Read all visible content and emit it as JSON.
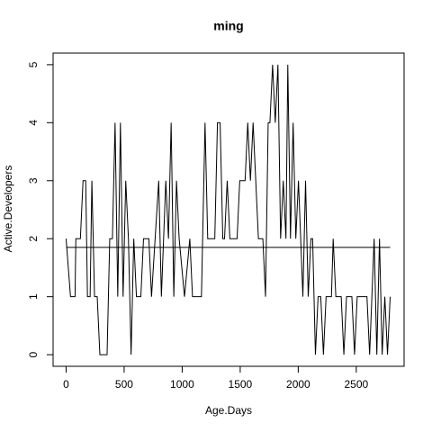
{
  "chart_data": {
    "type": "line",
    "title": "ming",
    "x_label": "Age.Days",
    "y_label": "Active.Developers",
    "x": [
      0,
      38,
      77,
      84,
      123,
      146,
      169,
      184,
      207,
      222,
      245,
      268,
      291,
      353,
      376,
      399,
      422,
      445,
      468,
      491,
      514,
      537,
      560,
      583,
      606,
      644,
      667,
      713,
      736,
      798,
      821,
      859,
      882,
      905,
      928,
      951,
      974,
      1020,
      1066,
      1089,
      1166,
      1197,
      1220,
      1281,
      1304,
      1327,
      1350,
      1365,
      1388,
      1411,
      1473,
      1496,
      1542,
      1565,
      1588,
      1611,
      1657,
      1695,
      1718,
      1741,
      1756,
      1779,
      1802,
      1825,
      1848,
      1871,
      1894,
      1910,
      1933,
      1956,
      1979,
      2002,
      2040,
      2063,
      2086,
      2109,
      2124,
      2148,
      2171,
      2194,
      2217,
      2240,
      2286,
      2301,
      2324,
      2370,
      2393,
      2416,
      2462,
      2485,
      2508,
      2592,
      2615,
      2654,
      2677,
      2700,
      2723,
      2746,
      2769,
      2792
    ],
    "values": [
      2,
      1,
      1,
      2,
      2,
      3,
      3,
      1,
      1,
      3,
      1,
      1,
      0,
      0,
      2,
      2,
      4,
      1,
      4,
      1,
      3,
      2,
      0,
      2,
      1,
      1,
      2,
      2,
      1,
      3,
      1,
      3,
      2,
      4,
      1,
      3,
      2,
      1,
      2,
      1,
      1,
      4,
      2,
      2,
      4,
      4,
      2,
      2,
      3,
      2,
      2,
      3,
      3,
      4,
      3,
      4,
      2,
      2,
      1,
      4,
      4,
      5,
      4,
      5,
      2,
      3,
      2,
      5,
      2,
      4,
      2,
      3,
      1,
      3,
      1,
      2,
      2,
      0,
      1,
      1,
      0,
      1,
      1,
      2,
      1,
      1,
      0,
      1,
      1,
      0,
      1,
      1,
      0,
      2,
      0,
      2,
      0,
      1,
      0,
      1
    ],
    "color": "#000000",
    "hline": 1.85,
    "xlim": [
      -112,
      2912
    ],
    "ylim": [
      -0.2,
      5.2
    ],
    "xticks": [
      0,
      500,
      1000,
      1500,
      2000,
      2500
    ],
    "yticks": [
      0,
      1,
      2,
      3,
      4,
      5
    ]
  }
}
